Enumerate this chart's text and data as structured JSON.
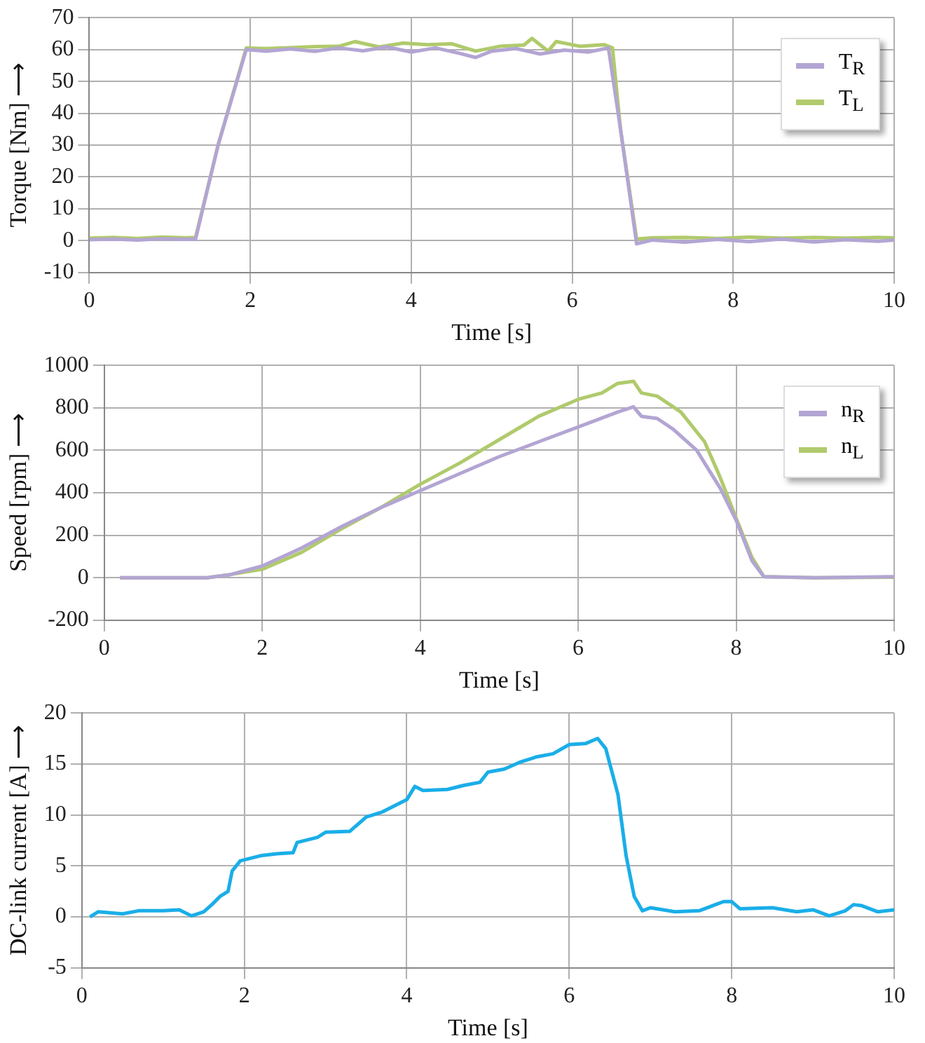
{
  "chart_data": [
    {
      "type": "line",
      "xlabel": "Time [s]",
      "ylabel": "Torque [Nm] ⟶",
      "xlim": [
        0,
        10
      ],
      "xticks": [
        0,
        2,
        4,
        6,
        8,
        10
      ],
      "ylim": [
        -10,
        70
      ],
      "yticks": [
        -10,
        0,
        10,
        20,
        30,
        40,
        50,
        60,
        70
      ],
      "grid": true,
      "legend": "top right",
      "marker": "none",
      "line_style": "solid",
      "series": [
        {
          "name": "T$_{R}$",
          "color": "#b3a5d3",
          "x": [
            0,
            0.3,
            0.6,
            0.9,
            1.2,
            1.32,
            1.6,
            1.95,
            2.2,
            2.5,
            2.8,
            3.1,
            3.4,
            3.7,
            4,
            4.3,
            4.6,
            4.8,
            5,
            5.3,
            5.6,
            5.9,
            6.2,
            6.45,
            6.6,
            6.8,
            7,
            7.4,
            7.8,
            8.2,
            8.6,
            9,
            9.4,
            9.8,
            10
          ],
          "values": [
            0.3,
            0.5,
            0.2,
            0.6,
            0.4,
            0.5,
            30,
            60,
            59.5,
            60.2,
            59.4,
            60.5,
            59.6,
            60.8,
            59.2,
            60.5,
            58.8,
            57.5,
            59.5,
            60.3,
            58.6,
            59.8,
            59.2,
            60.5,
            35,
            -1,
            0.2,
            -0.5,
            0.4,
            -0.3,
            0.5,
            -0.4,
            0.3,
            -0.2,
            0.2
          ]
        },
        {
          "name": "T$_{L}$",
          "color": "#b0ca6c",
          "x": [
            0,
            0.3,
            0.6,
            0.9,
            1.2,
            1.32,
            1.6,
            1.95,
            2.2,
            2.5,
            2.8,
            3.1,
            3.3,
            3.6,
            3.9,
            4.2,
            4.5,
            4.8,
            5.1,
            5.4,
            5.5,
            5.7,
            5.8,
            6.1,
            6.4,
            6.5,
            6.6,
            6.8,
            7,
            7.4,
            7.8,
            8.2,
            8.6,
            9,
            9.4,
            9.8,
            10
          ],
          "values": [
            0.8,
            1,
            0.7,
            1.1,
            0.9,
            1,
            30,
            60.5,
            60.3,
            60.6,
            60.9,
            61,
            62.5,
            60.8,
            62,
            61.5,
            61.8,
            59.5,
            61,
            61.4,
            63.5,
            59.5,
            62.5,
            61,
            61.5,
            60.5,
            35,
            0.5,
            0.9,
            1,
            0.7,
            1.1,
            0.8,
            1,
            0.8,
            1,
            0.9
          ]
        }
      ]
    },
    {
      "type": "line",
      "xlabel": "Time [s]",
      "ylabel": "Speed [rpm] ⟶",
      "xlim": [
        0,
        10
      ],
      "xticks": [
        0,
        2,
        4,
        6,
        8,
        10
      ],
      "ylim": [
        -200,
        1000
      ],
      "yticks": [
        -200,
        0,
        200,
        400,
        600,
        800,
        1000
      ],
      "grid": true,
      "legend": "top right",
      "marker": "none",
      "line_style": "solid",
      "series": [
        {
          "name": "n$_{R}$",
          "color": "#b3a5d3",
          "x": [
            0.2,
            1,
            1.3,
            1.6,
            2,
            2.5,
            3,
            3.5,
            4,
            4.5,
            5,
            5.5,
            6,
            6.5,
            6.7,
            6.8,
            7,
            7.2,
            7.5,
            7.8,
            8,
            8.2,
            8.35,
            9,
            10
          ],
          "values": [
            0,
            0,
            0,
            15,
            55,
            140,
            240,
            330,
            410,
            490,
            570,
            640,
            710,
            780,
            805,
            760,
            750,
            700,
            600,
            420,
            270,
            80,
            5,
            0,
            5
          ]
        },
        {
          "name": "n$_{L}$",
          "color": "#b0ca6c",
          "x": [
            0.2,
            1.3,
            1.6,
            2,
            2.5,
            3,
            3.5,
            4,
            4.5,
            5,
            5.5,
            6,
            6.3,
            6.5,
            6.7,
            6.8,
            7,
            7.3,
            7.6,
            7.8,
            8,
            8.2,
            8.35,
            9,
            10
          ],
          "values": [
            0,
            0,
            15,
            40,
            120,
            230,
            330,
            440,
            540,
            650,
            760,
            840,
            870,
            915,
            925,
            870,
            855,
            780,
            640,
            470,
            280,
            95,
            5,
            0,
            2
          ]
        }
      ]
    },
    {
      "type": "line",
      "xlabel": "Time [s]",
      "ylabel": "DC-link current [A] ⟶",
      "xlim": [
        0,
        10
      ],
      "xticks": [
        0,
        2,
        4,
        6,
        8,
        10
      ],
      "ylim": [
        -5,
        20
      ],
      "yticks": [
        -5,
        0,
        5,
        10,
        15,
        20
      ],
      "grid": true,
      "marker": "none",
      "line_style": "solid",
      "series": [
        {
          "color": "#1aaee8",
          "x": [
            0.1,
            0.2,
            0.5,
            0.7,
            1,
            1.2,
            1.35,
            1.5,
            1.6,
            1.7,
            1.8,
            1.85,
            1.95,
            2.2,
            2.4,
            2.6,
            2.65,
            2.9,
            3,
            3.3,
            3.5,
            3.7,
            4,
            4.1,
            4.2,
            4.5,
            4.7,
            4.9,
            5,
            5.2,
            5.4,
            5.6,
            5.8,
            6,
            6.2,
            6.35,
            6.45,
            6.6,
            6.7,
            6.8,
            6.9,
            7,
            7.3,
            7.6,
            7.9,
            8,
            8.1,
            8.5,
            8.8,
            9,
            9.2,
            9.4,
            9.5,
            9.6,
            9.8,
            10
          ],
          "values": [
            0,
            0.5,
            0.3,
            0.6,
            0.6,
            0.7,
            0.1,
            0.5,
            1.2,
            2,
            2.5,
            4.5,
            5.5,
            6,
            6.2,
            6.3,
            7.3,
            7.8,
            8.3,
            8.4,
            9.8,
            10.3,
            11.5,
            12.8,
            12.4,
            12.5,
            12.9,
            13.2,
            14.2,
            14.5,
            15.2,
            15.7,
            16,
            16.9,
            17,
            17.5,
            16.5,
            12,
            6,
            2,
            0.6,
            0.9,
            0.5,
            0.6,
            1.5,
            1.5,
            0.8,
            0.9,
            0.5,
            0.7,
            0.1,
            0.6,
            1.2,
            1.1,
            0.5,
            0.7
          ]
        }
      ]
    }
  ]
}
